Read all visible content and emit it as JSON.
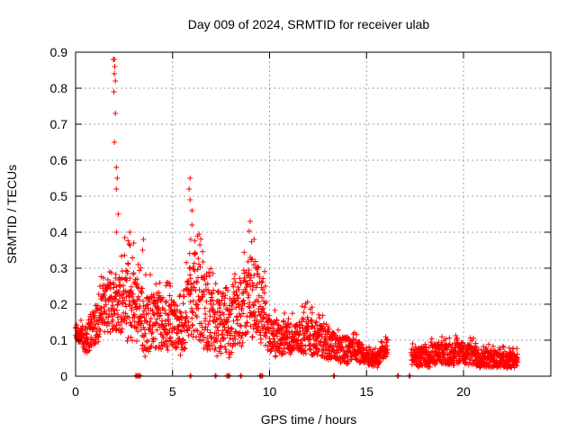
{
  "chart_data": {
    "type": "scatter",
    "title": "Day 009 of 2024, SRMTID for receiver ulab",
    "xlabel": "GPS time / hours",
    "ylabel": "SRMTID / TECUs",
    "xlim": [
      0,
      24.5
    ],
    "ylim": [
      0,
      0.9
    ],
    "xticks": [
      0,
      5,
      10,
      15,
      20
    ],
    "xtick_labels": [
      "0",
      "5",
      "10",
      "15",
      "20"
    ],
    "yticks": [
      0,
      0.1,
      0.2,
      0.3,
      0.4,
      0.5,
      0.6,
      0.7,
      0.8,
      0.9
    ],
    "ytick_labels": [
      "0",
      "0.1",
      "0.2",
      "0.3",
      "0.4",
      "0.5",
      "0.6",
      "0.7",
      "0.8",
      "0.9"
    ],
    "grid": true,
    "marker": "+",
    "color": "#ff0000",
    "series": [
      {
        "name": "SRMTID",
        "envelope": [
          [
            0.0,
            0.1,
            0.15
          ],
          [
            0.5,
            0.06,
            0.16
          ],
          [
            1.0,
            0.08,
            0.22
          ],
          [
            1.5,
            0.12,
            0.32
          ],
          [
            2.0,
            0.12,
            0.3
          ],
          [
            2.5,
            0.1,
            0.4
          ],
          [
            3.0,
            0.08,
            0.37
          ],
          [
            3.5,
            0.05,
            0.3
          ],
          [
            4.0,
            0.07,
            0.28
          ],
          [
            4.5,
            0.06,
            0.28
          ],
          [
            5.0,
            0.08,
            0.26
          ],
          [
            5.5,
            0.05,
            0.22
          ],
          [
            6.0,
            0.1,
            0.45
          ],
          [
            6.5,
            0.08,
            0.38
          ],
          [
            7.0,
            0.05,
            0.3
          ],
          [
            7.5,
            0.04,
            0.25
          ],
          [
            8.0,
            0.05,
            0.26
          ],
          [
            8.5,
            0.08,
            0.33
          ],
          [
            9.0,
            0.1,
            0.43
          ],
          [
            9.5,
            0.08,
            0.38
          ],
          [
            10.0,
            0.06,
            0.2
          ],
          [
            10.5,
            0.05,
            0.17
          ],
          [
            11.0,
            0.06,
            0.18
          ],
          [
            11.5,
            0.06,
            0.18
          ],
          [
            12.0,
            0.06,
            0.22
          ],
          [
            12.5,
            0.05,
            0.18
          ],
          [
            13.0,
            0.04,
            0.16
          ],
          [
            13.5,
            0.04,
            0.14
          ],
          [
            14.0,
            0.03,
            0.14
          ],
          [
            14.5,
            0.04,
            0.12
          ],
          [
            15.0,
            0.03,
            0.09
          ],
          [
            15.5,
            0.02,
            0.08
          ],
          [
            16.0,
            0.05,
            0.12
          ],
          [
            17.3,
            0.03,
            0.09
          ],
          [
            17.8,
            0.02,
            0.1
          ],
          [
            18.3,
            0.02,
            0.11
          ],
          [
            18.8,
            0.03,
            0.11
          ],
          [
            19.3,
            0.03,
            0.11
          ],
          [
            19.8,
            0.03,
            0.12
          ],
          [
            20.3,
            0.03,
            0.11
          ],
          [
            20.8,
            0.02,
            0.1
          ],
          [
            21.3,
            0.02,
            0.09
          ],
          [
            21.8,
            0.02,
            0.09
          ],
          [
            22.3,
            0.02,
            0.08
          ],
          [
            22.8,
            0.02,
            0.08
          ]
        ],
        "gaps": [
          [
            16.1,
            17.3
          ]
        ],
        "spikes": [
          [
            1.95,
            0.88
          ],
          [
            2.0,
            0.88
          ],
          [
            2.02,
            0.86
          ],
          [
            2.0,
            0.84
          ],
          [
            2.05,
            0.82
          ],
          [
            1.97,
            0.79
          ],
          [
            2.05,
            0.73
          ],
          [
            2.0,
            0.65
          ],
          [
            2.1,
            0.58
          ],
          [
            2.15,
            0.55
          ],
          [
            2.1,
            0.52
          ],
          [
            2.2,
            0.45
          ],
          [
            2.1,
            0.4
          ],
          [
            3.5,
            0.38
          ],
          [
            3.45,
            0.35
          ],
          [
            5.9,
            0.55
          ],
          [
            5.85,
            0.52
          ],
          [
            5.9,
            0.49
          ],
          [
            6.0,
            0.46
          ],
          [
            6.0,
            0.42
          ],
          [
            9.0,
            0.43
          ],
          [
            9.2,
            0.38
          ],
          [
            2.8,
            0.4
          ],
          [
            3.0,
            0.37
          ]
        ],
        "near_zero": [
          3.1,
          3.2,
          3.3,
          5.9,
          7.2,
          7.8,
          7.9,
          8.5,
          9.5,
          9.6,
          13.3,
          16.6,
          17.2
        ]
      }
    ]
  }
}
